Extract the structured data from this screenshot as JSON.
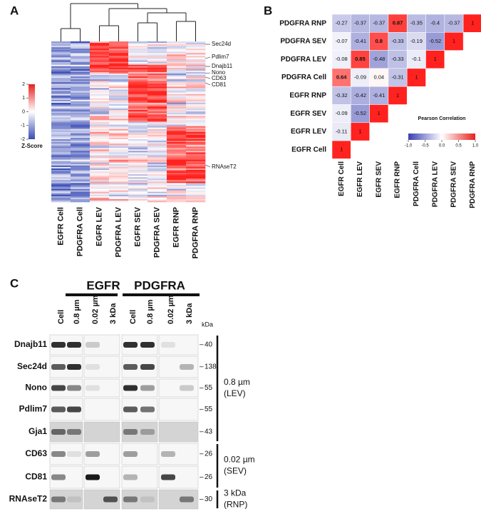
{
  "panel_labels": [
    "A",
    "B",
    "C"
  ],
  "chart_data": [
    {
      "type": "heatmap",
      "columns": [
        "EGFR Cell",
        "PDGFRA Cell",
        "EGFR LEV",
        "PDGFRA LEV",
        "EGFR SEV",
        "PDGFRA SEV",
        "EGFR RNP",
        "PDGFRA RNP"
      ],
      "gene_labels": [
        "Sec24d",
        "Pdlim7",
        "Dnajb11",
        "Nono",
        "CD63",
        "CD81",
        "RNAseT2"
      ],
      "colorbar_label": "Z-Score",
      "clim": [
        -2,
        2
      ],
      "cticks": [
        2,
        1,
        0,
        -1,
        -2
      ]
    },
    {
      "type": "heatmap",
      "rows": [
        "PDGFRA RNP",
        "PDGFRA SEV",
        "PDGFRA LEV",
        "PDGFRA Cell",
        "EGFR RNP",
        "EGFR SEV",
        "EGFR LEV",
        "EGFR Cell"
      ],
      "columns": [
        "EGFR Cell",
        "EGFR LEV",
        "EGFR SEV",
        "EGFR RNP",
        "PDGFRA Cell",
        "PDGFRA LEV",
        "PDGFRA SEV",
        "PDGFRA RNP"
      ],
      "values": [
        [
          -0.27,
          -0.37,
          -0.37,
          0.87,
          -0.35,
          -0.4,
          -0.37,
          1
        ],
        [
          -0.07,
          -0.41,
          0.8,
          -0.33,
          -0.19,
          -0.52,
          1
        ],
        [
          -0.08,
          0.85,
          -0.48,
          -0.33,
          -0.1,
          1
        ],
        [
          0.64,
          -0.09,
          0.04,
          -0.31,
          1
        ],
        [
          -0.32,
          -0.42,
          -0.41,
          1
        ],
        [
          -0.09,
          -0.52,
          1
        ],
        [
          -0.11,
          1
        ],
        [
          1
        ]
      ],
      "colorbar_title": "Pearson Correlation",
      "clim": [
        -1,
        1
      ],
      "cticks": [
        {
          "value": -1,
          "label": "-1.0"
        },
        {
          "value": -0.5,
          "label": "-0.5"
        },
        {
          "value": 0,
          "label": "0.0"
        },
        {
          "value": 0.5,
          "label": "0.5"
        },
        {
          "value": 1,
          "label": "1.0"
        }
      ]
    }
  ],
  "blot": {
    "groups": [
      "EGFR",
      "PDGFRA"
    ],
    "lanes": [
      "Cell",
      "0.8 µm",
      "0.02 µm",
      "3 kDa",
      "Cell",
      "0.8 µm",
      "0.02 µm",
      "3 kDa"
    ],
    "unit": "kDa",
    "rows": [
      {
        "protein": "Dnajb11",
        "mw": 40
      },
      {
        "protein": "Sec24d",
        "mw": 138
      },
      {
        "protein": "Nono",
        "mw": 55
      },
      {
        "protein": "Pdlim7",
        "mw": 55
      },
      {
        "protein": "Gja1",
        "mw": 43
      },
      {
        "protein": "CD63",
        "mw": 26
      },
      {
        "protein": "CD81",
        "mw": 26
      },
      {
        "protein": "RNAseT2",
        "mw": 30
      }
    ],
    "fractions": [
      {
        "size": "0.8 µm",
        "label": "(LEV)"
      },
      {
        "size": "0.02 µm",
        "label": "(SEV)"
      },
      {
        "size": "3 kDa",
        "label": "(RNP)"
      }
    ]
  }
}
